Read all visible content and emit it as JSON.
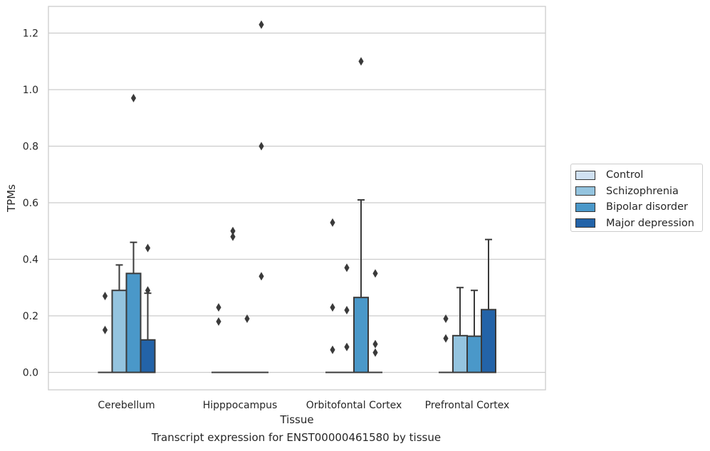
{
  "chart_data": {
    "type": "box",
    "title": "Transcript expression for ENST00000461580 by tissue",
    "xlabel": "Tissue",
    "ylabel": "TPMs",
    "ylim": [
      -0.06,
      1.29
    ],
    "yticks": [
      0.0,
      0.2,
      0.4,
      0.6,
      0.8,
      1.0,
      1.2
    ],
    "ytick_labels": [
      "0.0",
      "0.2",
      "0.4",
      "0.6",
      "0.8",
      "1.0",
      "1.2"
    ],
    "grid": "horizontal",
    "legend_position": "right",
    "categories": [
      "Cerebellum",
      "Hipppocampus",
      "Orbitofontal Cortex",
      "Prefrontal Cortex"
    ],
    "series": [
      {
        "name": "Control",
        "color": "#d0e1f2",
        "boxes": [
          {
            "q1": 0,
            "median": 0,
            "q3": 0,
            "whisker_low": 0,
            "whisker_high": 0,
            "outliers": [
              0.27,
              0.15
            ]
          },
          {
            "q1": 0,
            "median": 0,
            "q3": 0,
            "whisker_low": 0,
            "whisker_high": 0,
            "outliers": [
              0.23,
              0.18
            ]
          },
          {
            "q1": 0,
            "median": 0,
            "q3": 0,
            "whisker_low": 0,
            "whisker_high": 0,
            "outliers": [
              0.53,
              0.23,
              0.08
            ]
          },
          {
            "q1": 0,
            "median": 0,
            "q3": 0,
            "whisker_low": 0,
            "whisker_high": 0,
            "outliers": [
              0.19,
              0.12
            ]
          }
        ]
      },
      {
        "name": "Schizophrenia",
        "color": "#94c4df",
        "boxes": [
          {
            "q1": 0,
            "median": 0,
            "q3": 0.29,
            "whisker_low": 0,
            "whisker_high": 0.38,
            "outliers": []
          },
          {
            "q1": 0,
            "median": 0,
            "q3": 0,
            "whisker_low": 0,
            "whisker_high": 0,
            "outliers": [
              0.5,
              0.48
            ]
          },
          {
            "q1": 0,
            "median": 0,
            "q3": 0,
            "whisker_low": 0,
            "whisker_high": 0,
            "outliers": [
              0.37,
              0.22,
              0.09
            ]
          },
          {
            "q1": 0,
            "median": 0,
            "q3": 0.13,
            "whisker_low": 0,
            "whisker_high": 0.3,
            "outliers": []
          }
        ]
      },
      {
        "name": "Bipolar disorder",
        "color": "#4a98c9",
        "boxes": [
          {
            "q1": 0,
            "median": 0,
            "q3": 0.35,
            "whisker_low": 0,
            "whisker_high": 0.46,
            "outliers": [
              0.97
            ]
          },
          {
            "q1": 0,
            "median": 0,
            "q3": 0,
            "whisker_low": 0,
            "whisker_high": 0,
            "outliers": [
              0.19
            ]
          },
          {
            "q1": 0,
            "median": 0,
            "q3": 0.265,
            "whisker_low": 0,
            "whisker_high": 0.61,
            "outliers": [
              1.1
            ]
          },
          {
            "q1": 0,
            "median": 0,
            "q3": 0.128,
            "whisker_low": 0,
            "whisker_high": 0.29,
            "outliers": []
          }
        ]
      },
      {
        "name": "Major depression",
        "color": "#2363a8",
        "boxes": [
          {
            "q1": 0,
            "median": 0,
            "q3": 0.115,
            "whisker_low": 0,
            "whisker_high": 0.28,
            "outliers": [
              0.44,
              0.29
            ]
          },
          {
            "q1": 0,
            "median": 0,
            "q3": 0,
            "whisker_low": 0,
            "whisker_high": 0,
            "outliers": [
              1.23,
              0.8,
              0.34
            ]
          },
          {
            "q1": 0,
            "median": 0,
            "q3": 0,
            "whisker_low": 0,
            "whisker_high": 0,
            "outliers": [
              0.35,
              0.1,
              0.07
            ]
          },
          {
            "q1": 0,
            "median": 0,
            "q3": 0.222,
            "whisker_low": 0,
            "whisker_high": 0.47,
            "outliers": []
          }
        ]
      }
    ]
  }
}
